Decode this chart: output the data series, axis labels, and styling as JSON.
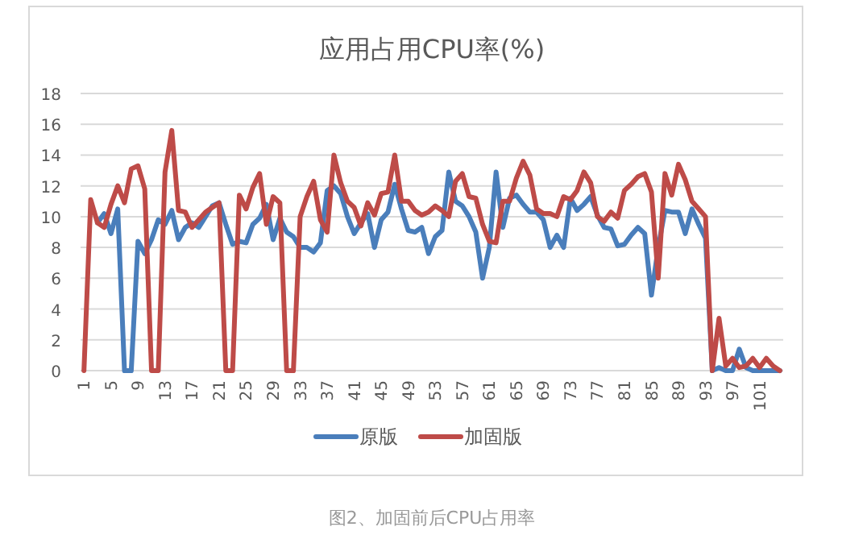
{
  "chart_data": {
    "type": "line",
    "title": "应用占用CPU率(%)",
    "categories": [
      "1",
      null,
      null,
      null,
      "5",
      null,
      null,
      null,
      "9",
      null,
      null,
      null,
      "13",
      null,
      null,
      null,
      "17",
      null,
      null,
      null,
      "21",
      null,
      null,
      null,
      "25",
      null,
      null,
      null,
      "29",
      null,
      null,
      null,
      "33",
      null,
      null,
      null,
      "37",
      null,
      null,
      null,
      "41",
      null,
      null,
      null,
      "45",
      null,
      null,
      null,
      "49",
      null,
      null,
      null,
      "53",
      null,
      null,
      null,
      "57",
      null,
      null,
      null,
      "61",
      null,
      null,
      null,
      "65",
      null,
      null,
      null,
      "69",
      null,
      null,
      null,
      "73",
      null,
      null,
      null,
      "77",
      null,
      null,
      null,
      "81",
      null,
      null,
      null,
      "85",
      null,
      null,
      null,
      "89",
      null,
      null,
      null,
      "93",
      null,
      null,
      null,
      "97",
      null,
      null,
      null,
      "101",
      null,
      null,
      null
    ],
    "series": [
      {
        "name": "原版",
        "color": "#4a7ebb",
        "values": [
          null,
          null,
          9.6,
          10.2,
          8.9,
          10.5,
          0,
          0,
          8.4,
          7.6,
          8.5,
          9.8,
          9.5,
          10.4,
          8.5,
          9.3,
          9.6,
          9.3,
          10.0,
          10.7,
          10.9,
          9.5,
          8.2,
          8.4,
          8.3,
          9.5,
          9.9,
          10.8,
          8.5,
          9.9,
          9.0,
          8.7,
          8.0,
          8.0,
          7.7,
          8.3,
          11.7,
          12.0,
          11.5,
          10.0,
          8.9,
          9.6,
          10.2,
          8.0,
          9.8,
          10.3,
          12.1,
          10.5,
          9.1,
          9.0,
          9.3,
          7.6,
          8.7,
          9.1,
          12.9,
          11.0,
          10.7,
          10.0,
          9.0,
          6.0,
          8.0,
          12.9,
          9.3,
          11.2,
          11.4,
          10.8,
          10.3,
          10.3,
          9.8,
          8.0,
          8.8,
          8.0,
          11.2,
          10.4,
          10.8,
          11.3,
          10.1,
          9.3,
          9.2,
          8.1,
          8.2,
          8.8,
          9.3,
          8.9,
          4.9,
          8.0,
          10.4,
          10.3,
          10.3,
          8.9,
          10.5,
          9.5,
          8.6,
          0,
          0.2,
          0,
          0,
          1.4,
          0.2,
          0,
          0,
          0,
          0,
          0
        ]
      },
      {
        "name": "加固版",
        "color": "#be4b48",
        "values": [
          0,
          11.1,
          9.6,
          9.3,
          10.8,
          12.0,
          10.9,
          13.1,
          13.3,
          11.8,
          0,
          0,
          12.9,
          15.6,
          10.4,
          10.3,
          9.3,
          9.8,
          10.3,
          10.6,
          10.9,
          0,
          0,
          11.4,
          10.5,
          11.9,
          12.8,
          9.5,
          11.3,
          10.9,
          0,
          0,
          10.0,
          11.3,
          12.3,
          9.8,
          9.0,
          14.0,
          12.2,
          11.0,
          10.6,
          9.4,
          10.9,
          10.1,
          11.5,
          11.6,
          14.0,
          11.0,
          11.0,
          10.4,
          10.1,
          10.3,
          10.7,
          10.4,
          10.0,
          12.3,
          12.8,
          11.3,
          11.2,
          9.5,
          8.4,
          8.3,
          11.0,
          11.0,
          12.5,
          13.6,
          12.7,
          10.5,
          10.2,
          10.2,
          10.0,
          11.3,
          11.1,
          11.7,
          12.9,
          12.2,
          10.0,
          9.7,
          10.3,
          9.9,
          11.7,
          12.1,
          12.6,
          12.8,
          11.6,
          6.0,
          12.8,
          11.4,
          13.4,
          12.4,
          11.0,
          10.5,
          10.0,
          0,
          3.4,
          0.3,
          0.8,
          0.2,
          0.3,
          0.8,
          0.2,
          0.8,
          0.3,
          0
        ]
      }
    ],
    "ylim": [
      0,
      18
    ],
    "yticks": [
      0,
      2,
      4,
      6,
      8,
      10,
      12,
      14,
      16,
      18
    ],
    "grid": "y",
    "legend": "bottom",
    "annotations": [
      "图2、加固前后CPU占用率"
    ]
  }
}
